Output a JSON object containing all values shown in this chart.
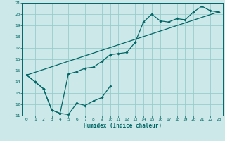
{
  "title": "",
  "xlabel": "Humidex (Indice chaleur)",
  "xlim": [
    -0.5,
    23.5
  ],
  "ylim": [
    11,
    21
  ],
  "yticks": [
    11,
    12,
    13,
    14,
    15,
    16,
    17,
    18,
    19,
    20,
    21
  ],
  "xticks": [
    0,
    1,
    2,
    3,
    4,
    5,
    6,
    7,
    8,
    9,
    10,
    11,
    12,
    13,
    14,
    15,
    16,
    17,
    18,
    19,
    20,
    21,
    22,
    23
  ],
  "background_color": "#cce8e8",
  "grid_color": "#99cccc",
  "line_color": "#006666",
  "line1_x": [
    0,
    1,
    2,
    3,
    4,
    5,
    6,
    7,
    8,
    9,
    10
  ],
  "line1_y": [
    14.6,
    14.0,
    13.4,
    11.5,
    11.2,
    11.1,
    12.1,
    11.9,
    12.3,
    12.6,
    13.6
  ],
  "line2_x": [
    0,
    1,
    2,
    3,
    4,
    5,
    6,
    7,
    8,
    9,
    10,
    11,
    12,
    13,
    14,
    15,
    16,
    17,
    18,
    19,
    20,
    21,
    22,
    23
  ],
  "line2_y": [
    14.6,
    14.0,
    13.4,
    11.5,
    11.2,
    14.7,
    14.9,
    15.2,
    15.3,
    15.8,
    16.4,
    16.5,
    16.6,
    17.5,
    19.3,
    20.0,
    19.4,
    19.3,
    19.6,
    19.5,
    20.2,
    20.7,
    20.3,
    20.2
  ],
  "line3_x": [
    0,
    23
  ],
  "line3_y": [
    14.6,
    20.2
  ]
}
